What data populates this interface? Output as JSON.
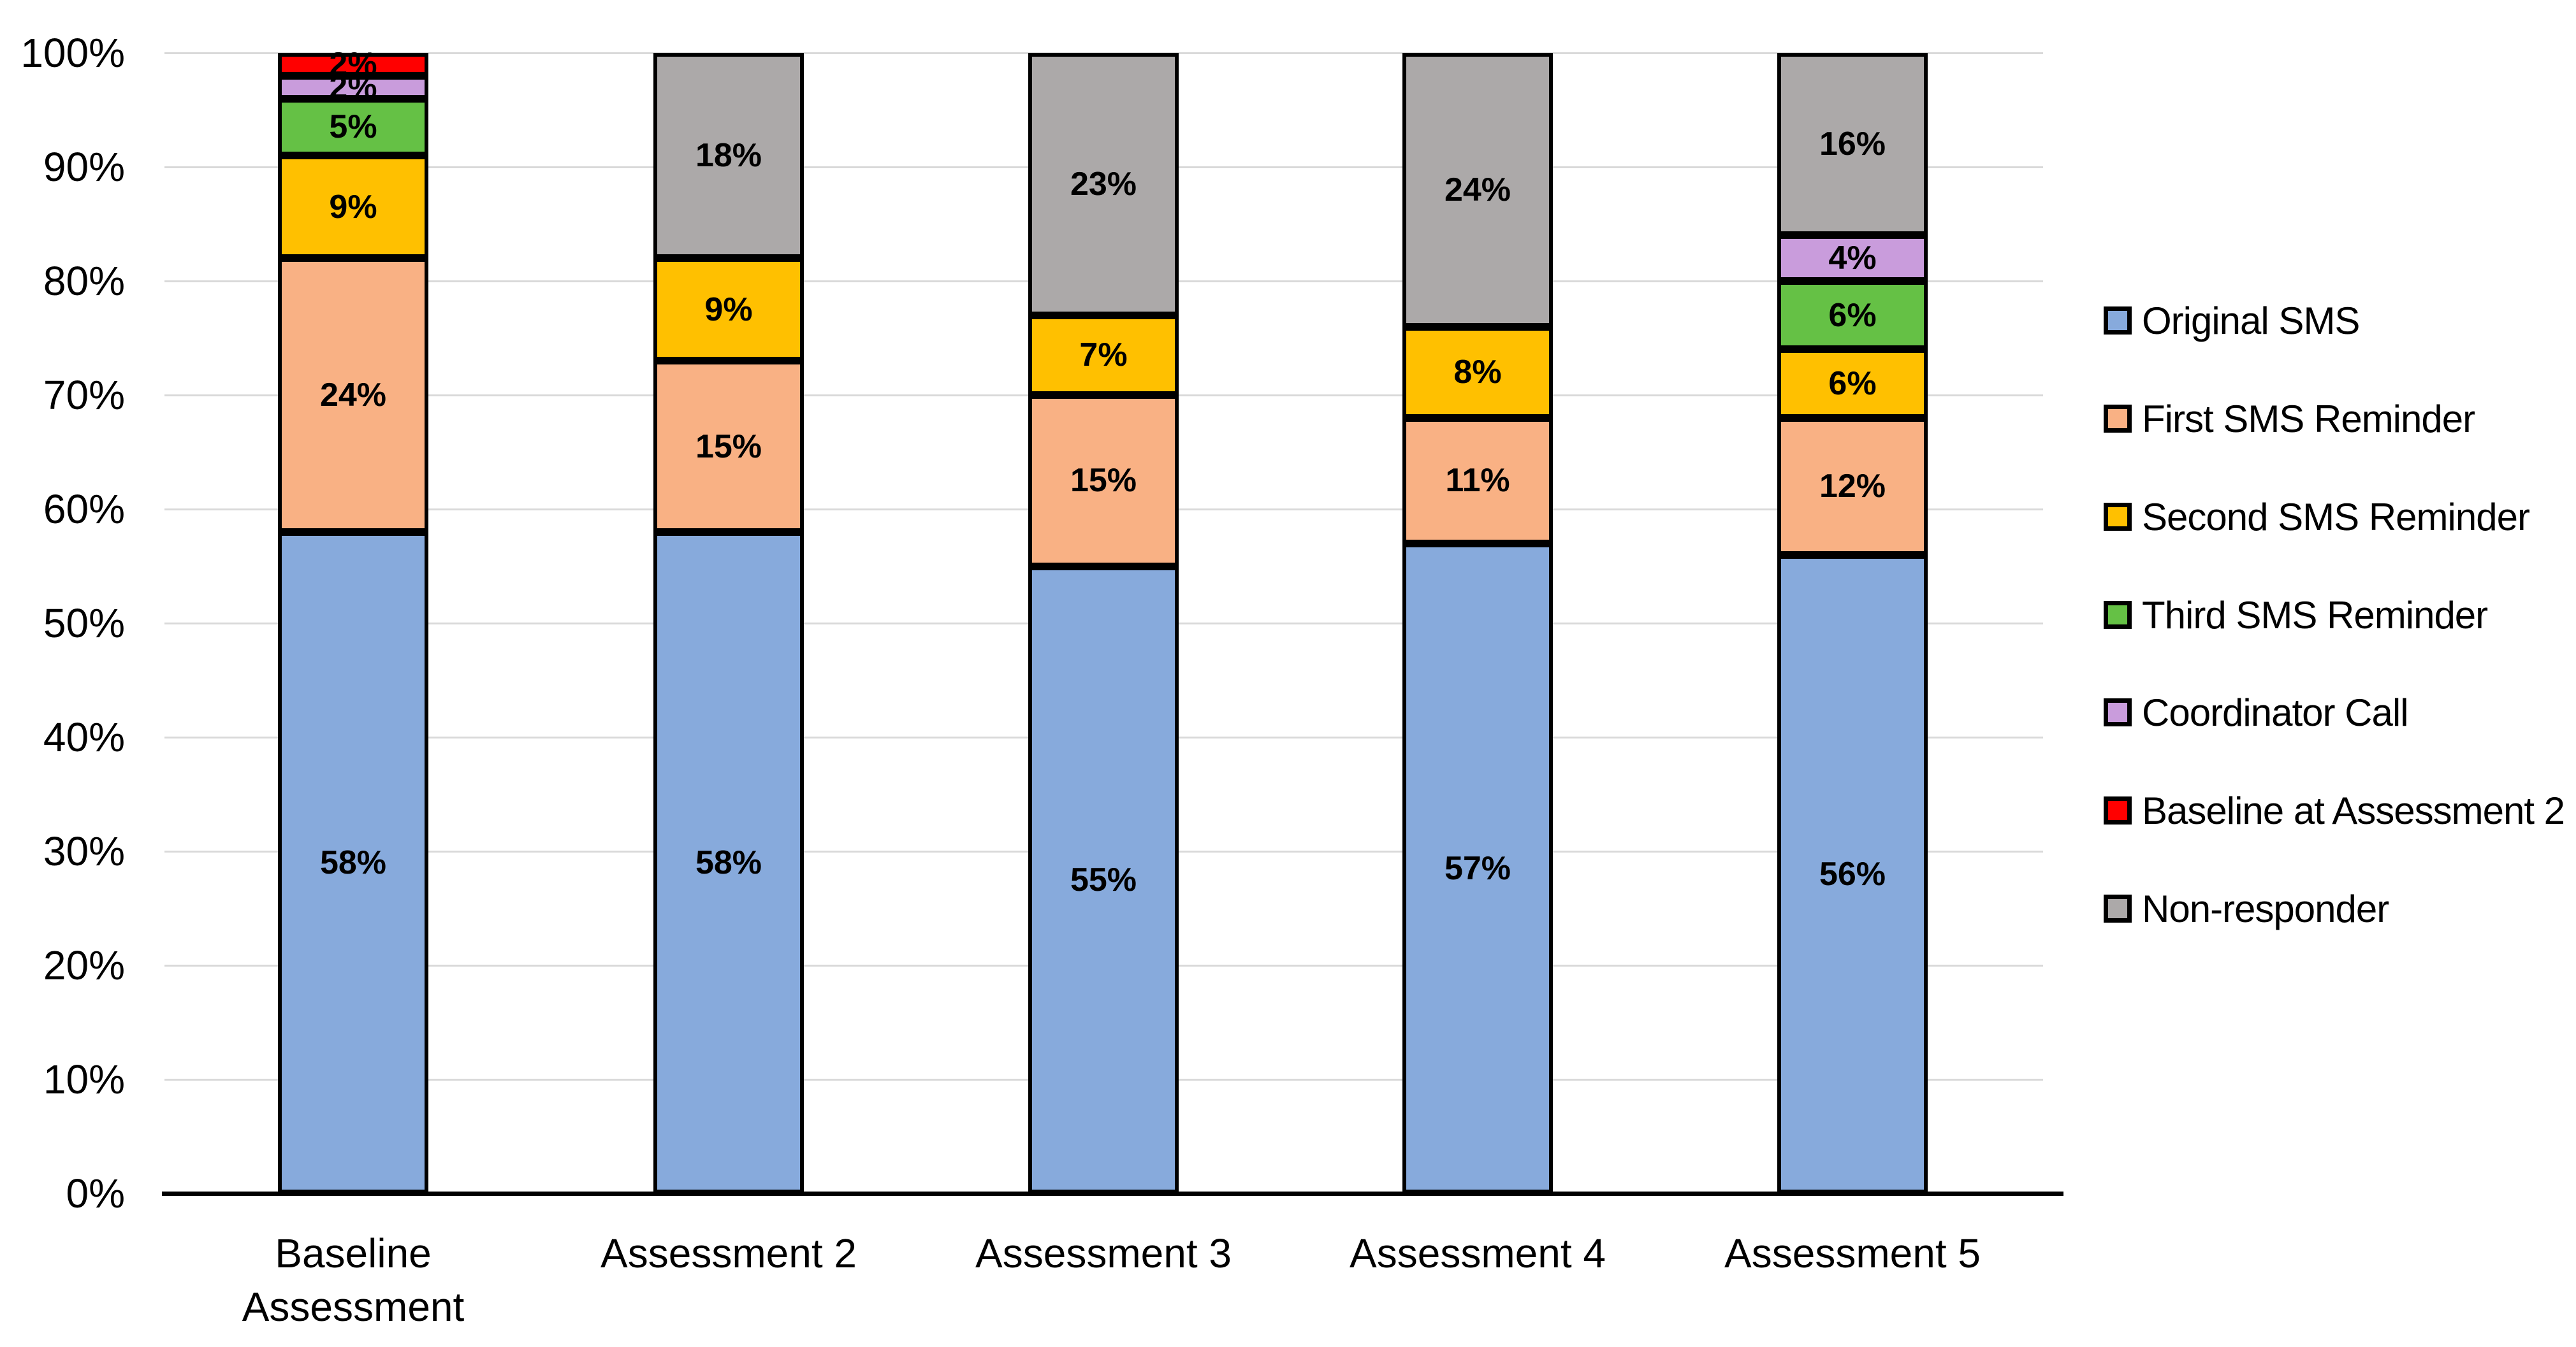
{
  "chart_data": {
    "type": "bar",
    "stacked": true,
    "value_format": "percent",
    "title": "",
    "xlabel": "",
    "ylabel": "",
    "grid": true,
    "legend_position": "right",
    "data_labels": true,
    "categories": [
      "Baseline Assessment",
      "Assessment 2",
      "Assessment 3",
      "Assessment 4",
      "Assessment 5"
    ],
    "series": [
      {
        "name": "Original SMS",
        "color": "#87AADC",
        "values": [
          58,
          58,
          55,
          57,
          56
        ]
      },
      {
        "name": "First SMS Reminder",
        "color": "#F9B184",
        "values": [
          24,
          15,
          15,
          11,
          12
        ]
      },
      {
        "name": "Second SMS Reminder",
        "color": "#FFC000",
        "values": [
          9,
          9,
          7,
          8,
          6
        ]
      },
      {
        "name": "Third SMS Reminder",
        "color": "#65C145",
        "values": [
          5,
          0,
          0,
          0,
          6
        ]
      },
      {
        "name": "Coordinator Call",
        "color": "#C99CDC",
        "values": [
          2,
          0,
          0,
          0,
          4
        ]
      },
      {
        "name": "Baseline at Assessment 2",
        "color": "#FF0000",
        "values": [
          2,
          0,
          0,
          0,
          0
        ]
      },
      {
        "name": "Non-responder",
        "color": "#ACA9A9",
        "values": [
          0,
          18,
          23,
          24,
          16
        ]
      }
    ],
    "y_axis": {
      "min": 0,
      "max": 100,
      "step": 10,
      "tick_labels": [
        "0%",
        "10%",
        "20%",
        "30%",
        "40%",
        "50%",
        "60%",
        "70%",
        "80%",
        "90%",
        "100%"
      ]
    },
    "colors": {
      "gridline": "#D9D9D9",
      "axis_line": "#000000",
      "bar_border": "#000000",
      "label_text": "#000000",
      "background": "#FFFFFF"
    }
  }
}
